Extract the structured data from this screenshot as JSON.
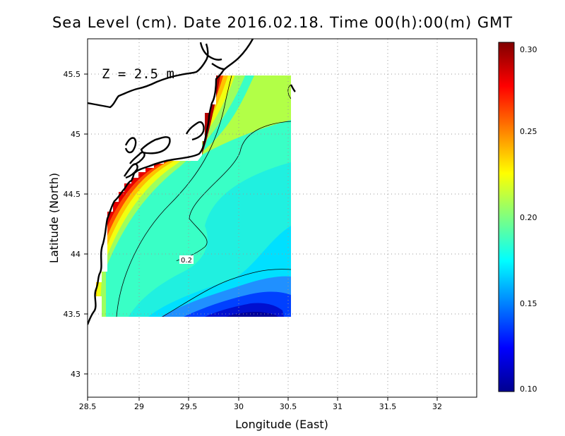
{
  "title": "Sea Level (cm). Date 2016.02.18. Time 00(h):00(m) GMT",
  "depth_label": "Z = 2.5 m",
  "chart_data": {
    "type": "heatmap",
    "title": "Sea Level (cm). Date 2016.02.18. Time 00(h):00(m) GMT",
    "xlabel": "Longitude (East)",
    "ylabel": "Latitude (North)",
    "xlim": [
      28.5,
      32.4
    ],
    "ylim": [
      42.8,
      45.8
    ],
    "x_ticks": [
      28.5,
      29,
      29.5,
      30,
      30.5,
      31,
      31.5,
      32
    ],
    "x_tick_labels": [
      "28.5",
      "29",
      "29.5",
      "30",
      "30.5",
      "31",
      "31.5",
      "32"
    ],
    "y_ticks": [
      43,
      43.5,
      44,
      44.5,
      45,
      45.5
    ],
    "y_tick_labels": [
      "43",
      "43.5",
      "44",
      "44.5",
      "45",
      "45.5"
    ],
    "grid": true,
    "data_extent": {
      "lon": [
        28.63,
        30.53
      ],
      "lat": [
        43.48,
        45.5
      ]
    },
    "colorbar": {
      "min": 0.1,
      "max": 0.3,
      "ticks": [
        0.1,
        0.15,
        0.2,
        0.25,
        0.3
      ],
      "tick_labels": [
        "0.10",
        "0.15",
        "0.20",
        "0.25",
        "0.30"
      ],
      "colormap": "jet"
    },
    "contours": [
      {
        "level": 0.2,
        "label": "0.2"
      }
    ],
    "field_summary": {
      "coastal_max": 0.3,
      "southern_min": 0.1,
      "offshore_typical": 0.18
    }
  },
  "colors": {
    "coastline": "#000000",
    "grid": "#999999",
    "background": "#ffffff"
  }
}
